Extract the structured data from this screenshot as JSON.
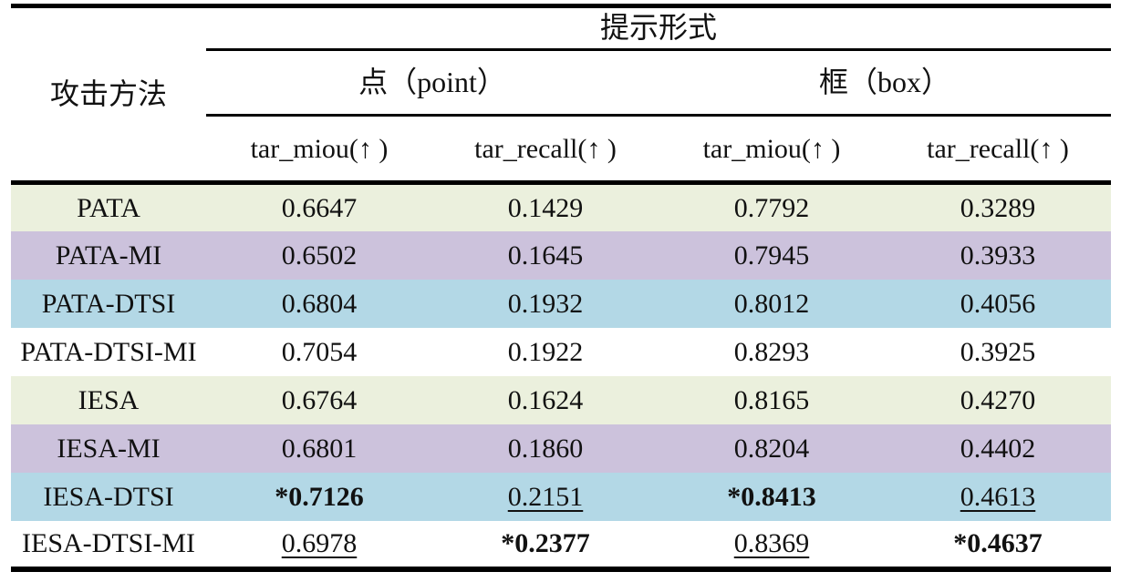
{
  "table": {
    "corner_label": "攻击方法",
    "top_label": "提示形式",
    "groups": [
      {
        "label": "点（point）",
        "columns": [
          "tar_miou(↑ )",
          "tar_recall(↑ )"
        ]
      },
      {
        "label": "框（box）",
        "columns": [
          "tar_miou(↑ )",
          "tar_recall(↑ )"
        ]
      }
    ],
    "rows": [
      {
        "method": "PATA",
        "bg": "row_green",
        "cells": [
          {
            "text": "0.6647",
            "bold": false,
            "underline": false
          },
          {
            "text": "0.1429",
            "bold": false,
            "underline": false
          },
          {
            "text": "0.7792",
            "bold": false,
            "underline": false
          },
          {
            "text": "0.3289",
            "bold": false,
            "underline": false
          }
        ]
      },
      {
        "method": "PATA-MI",
        "bg": "row_purple",
        "cells": [
          {
            "text": "0.6502",
            "bold": false,
            "underline": false
          },
          {
            "text": "0.1645",
            "bold": false,
            "underline": false
          },
          {
            "text": "0.7945",
            "bold": false,
            "underline": false
          },
          {
            "text": "0.3933",
            "bold": false,
            "underline": false
          }
        ]
      },
      {
        "method": "PATA-DTSI",
        "bg": "row_blue",
        "cells": [
          {
            "text": "0.6804",
            "bold": false,
            "underline": false
          },
          {
            "text": "0.1932",
            "bold": false,
            "underline": false
          },
          {
            "text": "0.8012",
            "bold": false,
            "underline": false
          },
          {
            "text": "0.4056",
            "bold": false,
            "underline": false
          }
        ]
      },
      {
        "method": "PATA-DTSI-MI",
        "bg": "row_white",
        "cells": [
          {
            "text": "0.7054",
            "bold": false,
            "underline": false
          },
          {
            "text": "0.1922",
            "bold": false,
            "underline": false
          },
          {
            "text": "0.8293",
            "bold": false,
            "underline": false
          },
          {
            "text": "0.3925",
            "bold": false,
            "underline": false
          }
        ]
      },
      {
        "method": "IESA",
        "bg": "row_green",
        "cells": [
          {
            "text": "0.6764",
            "bold": false,
            "underline": false
          },
          {
            "text": "0.1624",
            "bold": false,
            "underline": false
          },
          {
            "text": "0.8165",
            "bold": false,
            "underline": false
          },
          {
            "text": "0.4270",
            "bold": false,
            "underline": false
          }
        ]
      },
      {
        "method": "IESA-MI",
        "bg": "row_purple",
        "cells": [
          {
            "text": "0.6801",
            "bold": false,
            "underline": false
          },
          {
            "text": "0.1860",
            "bold": false,
            "underline": false
          },
          {
            "text": "0.8204",
            "bold": false,
            "underline": false
          },
          {
            "text": "0.4402",
            "bold": false,
            "underline": false
          }
        ]
      },
      {
        "method": "IESA-DTSI",
        "bg": "row_blue",
        "cells": [
          {
            "text": "*0.7126",
            "bold": true,
            "underline": false
          },
          {
            "text": "0.2151",
            "bold": false,
            "underline": true
          },
          {
            "text": "*0.8413",
            "bold": true,
            "underline": false
          },
          {
            "text": "0.4613",
            "bold": false,
            "underline": true
          }
        ]
      },
      {
        "method": "IESA-DTSI-MI",
        "bg": "row_white",
        "cells": [
          {
            "text": "0.6978",
            "bold": false,
            "underline": true
          },
          {
            "text": "*0.2377",
            "bold": true,
            "underline": false
          },
          {
            "text": "0.8369",
            "bold": false,
            "underline": true
          },
          {
            "text": "*0.4637",
            "bold": true,
            "underline": false
          }
        ]
      }
    ]
  },
  "colors": {
    "row_green": "#ebf0dd",
    "row_purple": "#ccc2dc",
    "row_blue": "#b3d8e6",
    "row_white": "#ffffff",
    "border": "#000000",
    "text": "#111111"
  }
}
